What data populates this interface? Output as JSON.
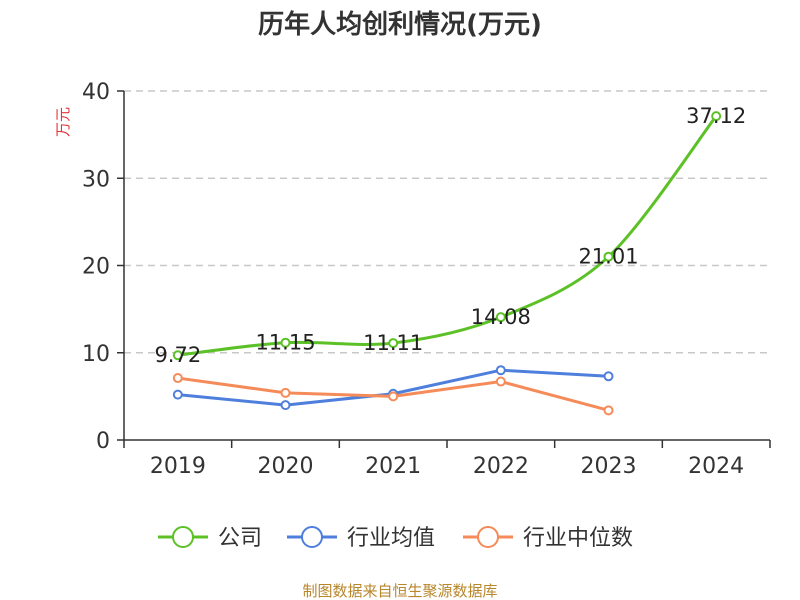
{
  "colors": {
    "company": "#5cc126",
    "industry_avg": "#4e7fdc",
    "industry_median": "#f58b59",
    "unit": "#e0353a",
    "source": "#b8862b",
    "grid": "#c8c8c8",
    "axis": "#333333"
  },
  "chart_data": {
    "type": "line",
    "title": "历年人均创利情况(万元)",
    "ylabel": "万元",
    "xlabel": "",
    "categories": [
      "2019",
      "2020",
      "2021",
      "2022",
      "2023",
      "2024"
    ],
    "ylim": [
      0,
      40
    ],
    "yticks": [
      0,
      10,
      20,
      30,
      40
    ],
    "grid": "horizontal-dashed",
    "legend_position": "bottom",
    "series": [
      {
        "key": "company",
        "name": "公司",
        "values": [
          9.72,
          11.15,
          11.11,
          14.08,
          21.01,
          37.12
        ],
        "labels": [
          "9.72",
          "11.15",
          "11.11",
          "14.08",
          "21.01",
          "37.12"
        ]
      },
      {
        "key": "industry_avg",
        "name": "行业均值",
        "values": [
          5.2,
          4.0,
          5.3,
          8.0,
          7.3,
          null
        ]
      },
      {
        "key": "industry_median",
        "name": "行业中位数",
        "values": [
          7.1,
          5.4,
          5.0,
          6.7,
          3.4,
          null
        ]
      }
    ]
  },
  "footer": {
    "source": "制图数据来自恒生聚源数据库"
  }
}
